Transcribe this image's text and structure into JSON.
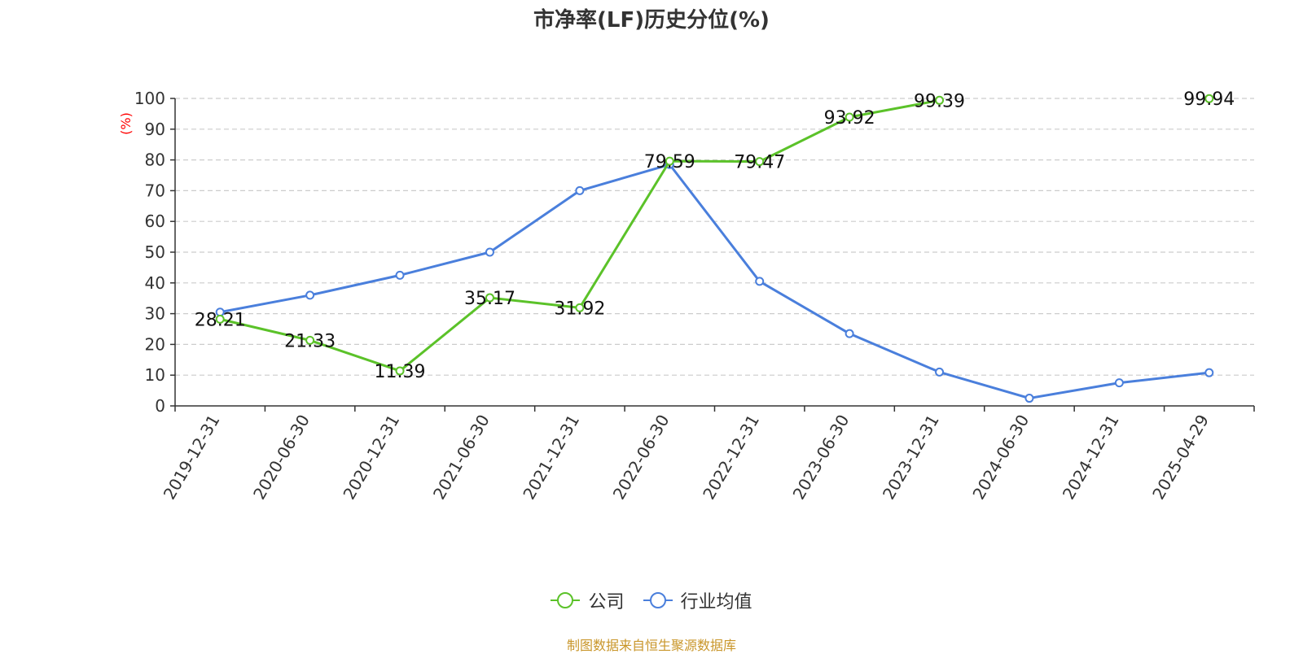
{
  "chart_data": {
    "type": "line",
    "title": "市净率(LF)历史分位(%)",
    "ylabel": "(%)",
    "xlabel": "",
    "ylim": [
      0,
      100
    ],
    "yticks": [
      0,
      10,
      20,
      30,
      40,
      50,
      60,
      70,
      80,
      90,
      100
    ],
    "categories": [
      "2019-12-31",
      "2020-06-30",
      "2020-12-31",
      "2021-06-30",
      "2021-12-31",
      "2022-06-30",
      "2022-12-31",
      "2023-06-30",
      "2023-12-31",
      "2024-06-30",
      "2024-12-31",
      "2025-04-29"
    ],
    "grid": true,
    "legend_position": "bottom",
    "series": [
      {
        "name": "公司",
        "color": "#5bc229",
        "values": [
          28.21,
          21.33,
          11.39,
          35.17,
          31.92,
          79.59,
          79.47,
          93.92,
          99.39,
          null,
          null,
          99.94
        ],
        "labels": [
          "28.21",
          "21.33",
          "11.39",
          "35.17",
          "31.92",
          "79.59",
          "79.47",
          "93.92",
          "99.39",
          "",
          "",
          "99.94"
        ]
      },
      {
        "name": "行业均值",
        "color": "#4a7fdc",
        "values": [
          30.5,
          36,
          42.5,
          50,
          70,
          78.5,
          40.5,
          23.5,
          11,
          2.5,
          7.5,
          10.8
        ]
      }
    ]
  },
  "source": "制图数据来自恒生聚源数据库"
}
